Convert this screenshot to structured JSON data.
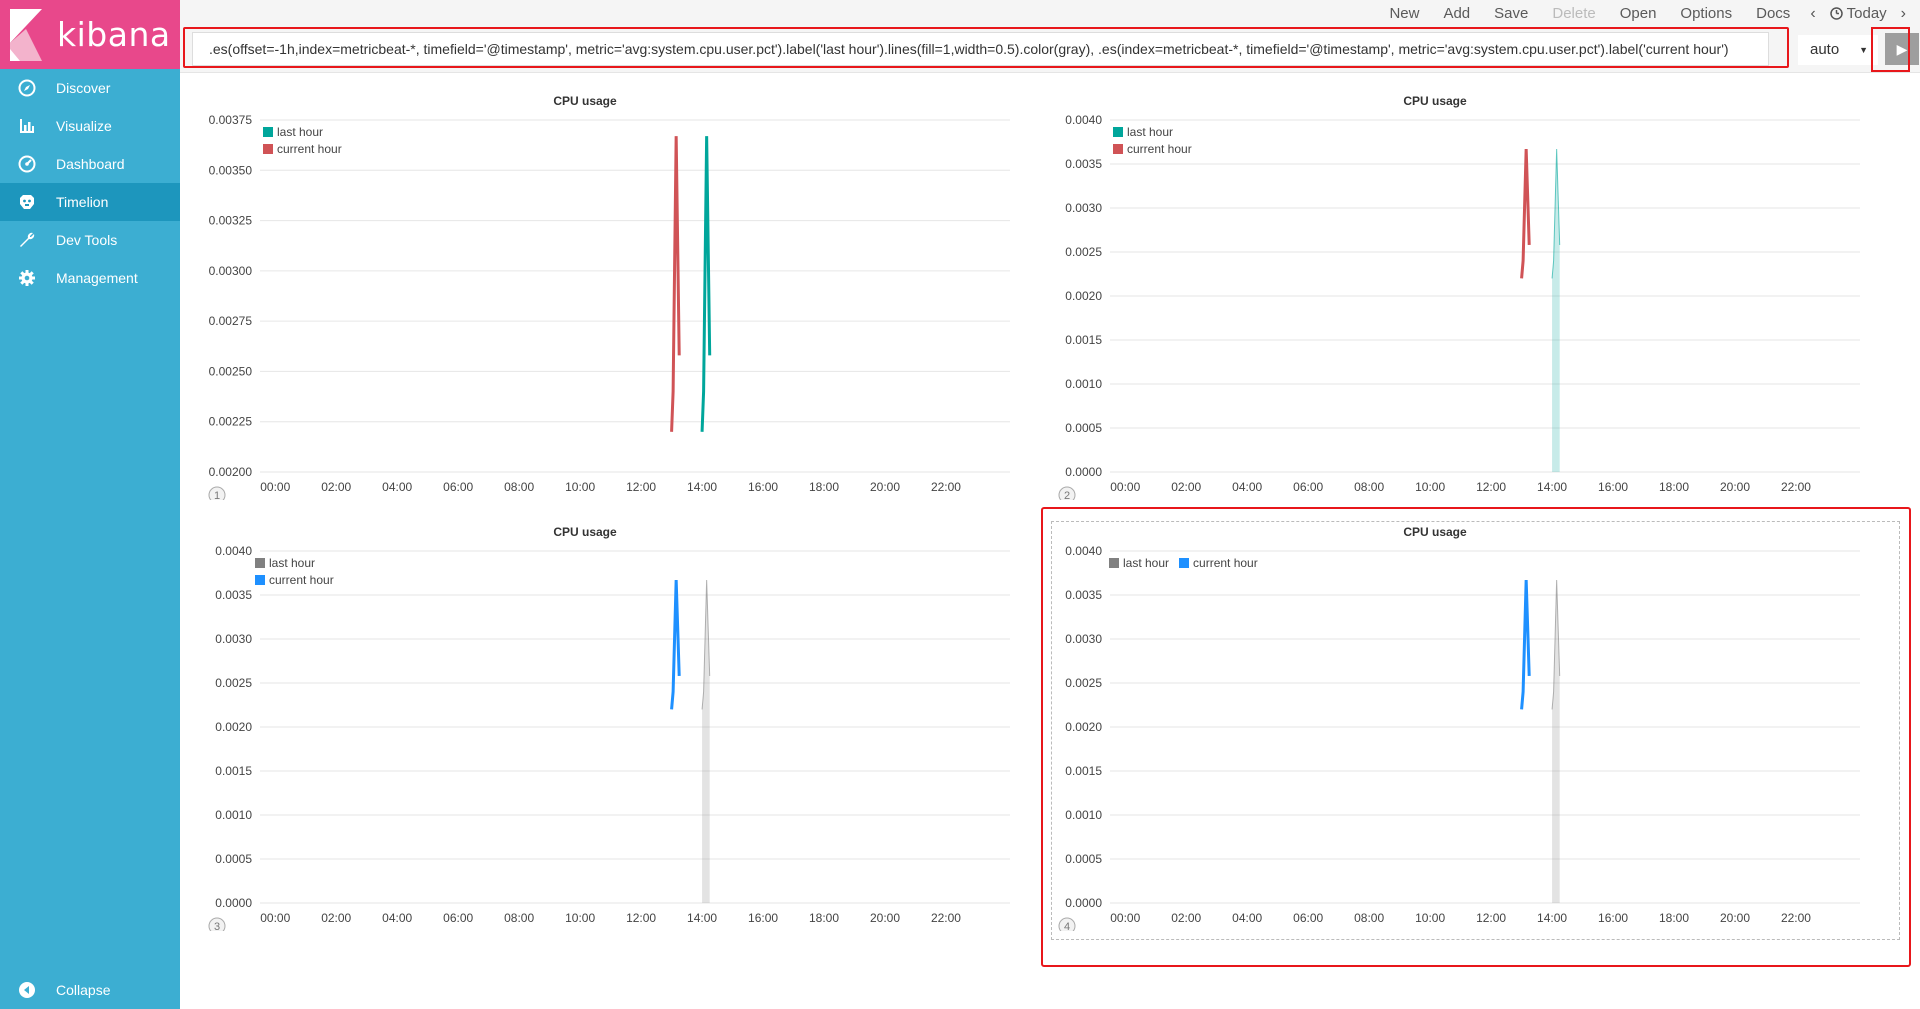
{
  "app": {
    "name": "kibana"
  },
  "sidebar": {
    "items": [
      {
        "label": "Discover",
        "icon": "compass-icon"
      },
      {
        "label": "Visualize",
        "icon": "bar-chart-icon"
      },
      {
        "label": "Dashboard",
        "icon": "dashboard-icon"
      },
      {
        "label": "Timelion",
        "icon": "timelion-icon",
        "active": true
      },
      {
        "label": "Dev Tools",
        "icon": "wrench-icon"
      },
      {
        "label": "Management",
        "icon": "gear-icon"
      }
    ],
    "collapse_label": "Collapse"
  },
  "topmenu": {
    "new": "New",
    "add": "Add",
    "save": "Save",
    "delete": "Delete",
    "open": "Open",
    "options": "Options",
    "docs": "Docs",
    "prev": "‹",
    "time": "Today",
    "next": "›"
  },
  "expression": {
    "value": ".es(offset=-1h,index=metricbeat-*, timefield='@timestamp', metric='avg:system.cpu.user.pct').label('last hour').lines(fill=1,width=0.5).color(gray), .es(index=metricbeat-*, timefield='@timestamp', metric='avg:system.cpu.user.pct').label('current hour')",
    "interval": "auto",
    "run_icon": "play-icon"
  },
  "colors": {
    "brand": "#e8488b",
    "sidebar": "#3caed2",
    "highlight": "#e8171b",
    "teal": "#00a69b",
    "red": "#d05356",
    "blue": "#1e90ff",
    "gray": "#808080"
  },
  "chart_data": [
    {
      "type": "line",
      "title": "CPU usage",
      "panel_number": "1",
      "x_ticks": [
        "00:00",
        "02:00",
        "04:00",
        "06:00",
        "08:00",
        "10:00",
        "12:00",
        "14:00",
        "16:00",
        "18:00",
        "20:00",
        "22:00"
      ],
      "y_ticks": [
        "0.00200",
        "0.00225",
        "0.00250",
        "0.00275",
        "0.00300",
        "0.00325",
        "0.00350",
        "0.00375"
      ],
      "ylim": [
        0.002,
        0.00375
      ],
      "series": [
        {
          "name": "last hour",
          "color": "#00a69b",
          "fill": false,
          "x": [
            14.0,
            14.05,
            14.15,
            14.25
          ],
          "y": [
            0.0022,
            0.0024,
            0.00367,
            0.00258
          ]
        },
        {
          "name": "current hour",
          "color": "#d05356",
          "fill": false,
          "x": [
            13.0,
            13.05,
            13.15,
            13.25
          ],
          "y": [
            0.0022,
            0.0024,
            0.00367,
            0.00258
          ]
        }
      ]
    },
    {
      "type": "line",
      "title": "CPU usage",
      "panel_number": "2",
      "x_ticks": [
        "00:00",
        "02:00",
        "04:00",
        "06:00",
        "08:00",
        "10:00",
        "12:00",
        "14:00",
        "16:00",
        "18:00",
        "20:00",
        "22:00"
      ],
      "y_ticks": [
        "0.0000",
        "0.0005",
        "0.0010",
        "0.0015",
        "0.0020",
        "0.0025",
        "0.0030",
        "0.0035",
        "0.0040"
      ],
      "ylim": [
        0,
        0.004
      ],
      "series": [
        {
          "name": "last hour",
          "color": "#00a69b",
          "fill": true,
          "x": [
            14.0,
            14.05,
            14.15,
            14.25
          ],
          "y": [
            0.0022,
            0.0024,
            0.00367,
            0.00258
          ]
        },
        {
          "name": "current hour",
          "color": "#d05356",
          "fill": false,
          "x": [
            13.0,
            13.05,
            13.15,
            13.25
          ],
          "y": [
            0.0022,
            0.0024,
            0.00367,
            0.00258
          ]
        }
      ]
    },
    {
      "type": "line",
      "title": "CPU usage",
      "panel_number": "3",
      "x_ticks": [
        "00:00",
        "02:00",
        "04:00",
        "06:00",
        "08:00",
        "10:00",
        "12:00",
        "14:00",
        "16:00",
        "18:00",
        "20:00",
        "22:00"
      ],
      "y_ticks": [
        "0.0000",
        "0.0005",
        "0.0010",
        "0.0015",
        "0.0020",
        "0.0025",
        "0.0030",
        "0.0035",
        "0.0040"
      ],
      "ylim": [
        0,
        0.004
      ],
      "series": [
        {
          "name": "last hour",
          "color": "#808080",
          "fill": true,
          "x": [
            14.0,
            14.05,
            14.15,
            14.25
          ],
          "y": [
            0.0022,
            0.0024,
            0.00367,
            0.00258
          ]
        },
        {
          "name": "current hour",
          "color": "#1e90ff",
          "fill": false,
          "x": [
            13.0,
            13.05,
            13.15,
            13.25
          ],
          "y": [
            0.0022,
            0.0024,
            0.00367,
            0.00258
          ]
        }
      ]
    },
    {
      "type": "line",
      "title": "CPU usage",
      "panel_number": "4",
      "x_ticks": [
        "00:00",
        "02:00",
        "04:00",
        "06:00",
        "08:00",
        "10:00",
        "12:00",
        "14:00",
        "16:00",
        "18:00",
        "20:00",
        "22:00"
      ],
      "y_ticks": [
        "0.0000",
        "0.0005",
        "0.0010",
        "0.0015",
        "0.0020",
        "0.0025",
        "0.0030",
        "0.0035",
        "0.0040"
      ],
      "ylim": [
        0,
        0.004
      ],
      "series": [
        {
          "name": "last hour",
          "color": "#808080",
          "fill": true,
          "x": [
            14.0,
            14.05,
            14.15,
            14.25
          ],
          "y": [
            0.0022,
            0.0024,
            0.00367,
            0.00258
          ]
        },
        {
          "name": "current hour",
          "color": "#1e90ff",
          "fill": false,
          "x": [
            13.0,
            13.05,
            13.15,
            13.25
          ],
          "y": [
            0.0022,
            0.0024,
            0.00367,
            0.00258
          ]
        }
      ]
    }
  ]
}
